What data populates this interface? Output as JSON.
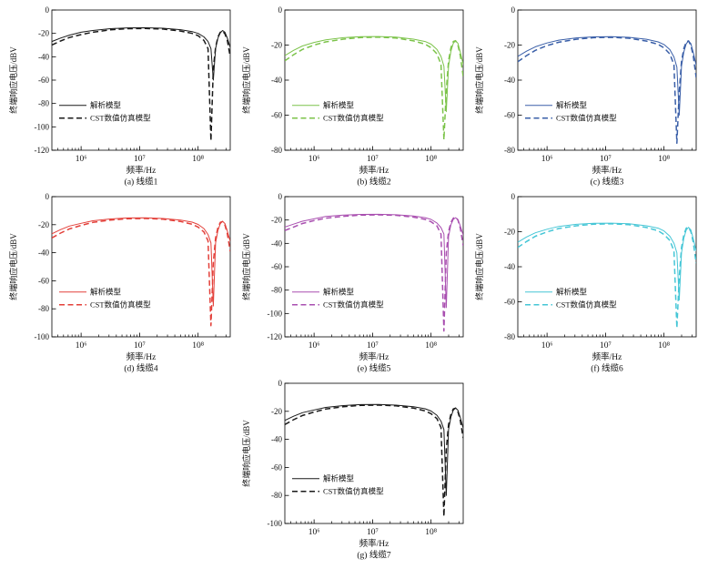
{
  "figure": {
    "background": "#ffffff",
    "layout": "3+3+1 grid of frequency-response subplots"
  },
  "chart_data": {
    "type": "line",
    "common": {
      "xlabel": "频率/Hz",
      "ylabel": "终端响应电压/dBV",
      "x_scale": "log10",
      "xlog_range": [
        5.5,
        8.55
      ],
      "xtick_logs": [
        6,
        7,
        8
      ],
      "xtick_labels": [
        "10⁶",
        "10⁷",
        "10⁸"
      ],
      "grid": false,
      "legend_position": "lower-left-inside",
      "legend": [
        {
          "label": "解析模型",
          "style": "solid"
        },
        {
          "label": "CST数值仿真模型",
          "style": "dashed"
        }
      ],
      "x_log": [
        5.5,
        5.65,
        5.8,
        6.0,
        6.2,
        6.5,
        6.8,
        7.1,
        7.4,
        7.7,
        7.9,
        8.0,
        8.1,
        8.17,
        8.22,
        8.26,
        8.3,
        8.34,
        8.38,
        8.42,
        8.46,
        8.5,
        8.55
      ]
    },
    "charts": [
      {
        "id": "cable1",
        "caption": "(a) 线缆1",
        "color": "#1a1a1a",
        "ylim": [
          -120,
          0
        ],
        "yticks": [
          0,
          -20,
          -40,
          -60,
          -80,
          -100,
          -120
        ],
        "series": [
          {
            "name": "解析模型",
            "style": "solid",
            "y": [
              -27,
              -24,
              -21.5,
              -19,
              -17.5,
              -16,
              -15.3,
              -15.2,
              -15.6,
              -16.8,
              -18.5,
              -20,
              -23,
              -27,
              -33,
              -60,
              -33,
              -24,
              -19.5,
              -17.5,
              -19,
              -24,
              -32
            ]
          },
          {
            "name": "CST数值仿真模型",
            "style": "dashed",
            "y": [
              -30,
              -26.5,
              -23.5,
              -21,
              -19,
              -17,
              -16,
              -15.8,
              -16.3,
              -18,
              -20,
              -22,
              -26,
              -33,
              -112,
              -50,
              -32,
              -23,
              -19,
              -18,
              -20.5,
              -26,
              -40
            ]
          }
        ]
      },
      {
        "id": "cable2",
        "caption": "(b) 线缆2",
        "color": "#7cc34a",
        "ylim": [
          -80,
          0
        ],
        "yticks": [
          0,
          -20,
          -40,
          -60,
          -80
        ],
        "series": [
          {
            "name": "解析模型",
            "style": "solid",
            "y": [
              -26,
              -23,
              -20.5,
              -18.5,
              -17,
              -15.8,
              -15.2,
              -15.1,
              -15.5,
              -16.6,
              -18,
              -19.5,
              -22.5,
              -26.5,
              -32,
              -58,
              -32,
              -23.5,
              -19,
              -17.5,
              -19,
              -24,
              -31
            ]
          },
          {
            "name": "CST数值仿真模型",
            "style": "dashed",
            "y": [
              -29,
              -25.5,
              -22.5,
              -20,
              -18.2,
              -16.6,
              -15.7,
              -15.5,
              -16,
              -17.6,
              -19.5,
              -21.5,
              -25,
              -31,
              -74,
              -46,
              -29,
              -21.5,
              -18,
              -17.5,
              -20,
              -26,
              -38
            ]
          }
        ]
      },
      {
        "id": "cable3",
        "caption": "(c) 线缆3",
        "color": "#3a5fa8",
        "ylim": [
          -80,
          0
        ],
        "yticks": [
          0,
          -20,
          -40,
          -60,
          -80
        ],
        "series": [
          {
            "name": "解析模型",
            "style": "solid",
            "y": [
              -26.5,
              -23.5,
              -21,
              -18.8,
              -17.2,
              -15.9,
              -15.3,
              -15.2,
              -15.6,
              -16.7,
              -18.2,
              -19.7,
              -22.6,
              -26.8,
              -32.5,
              -60,
              -32,
              -23.8,
              -19.2,
              -17.6,
              -19.2,
              -24.2,
              -31.5
            ]
          },
          {
            "name": "CST数值仿真模型",
            "style": "dashed",
            "y": [
              -29.5,
              -26,
              -23,
              -20.3,
              -18.4,
              -16.7,
              -15.8,
              -15.6,
              -16.1,
              -17.7,
              -19.6,
              -21.6,
              -25.1,
              -31.2,
              -76,
              -46.5,
              -29.3,
              -21.8,
              -18.2,
              -17.6,
              -20.2,
              -26.2,
              -38.5
            ]
          }
        ]
      },
      {
        "id": "cable4",
        "caption": "(d) 线缆4",
        "color": "#e3403a",
        "ylim": [
          -100,
          0
        ],
        "yticks": [
          0,
          -20,
          -40,
          -60,
          -80,
          -100
        ],
        "series": [
          {
            "name": "解析模型",
            "style": "solid",
            "y": [
              -26.5,
              -23.5,
              -21,
              -19,
              -17.2,
              -15.9,
              -15.2,
              -15.1,
              -15.6,
              -16.7,
              -18.2,
              -19.8,
              -22.8,
              -27,
              -33,
              -78,
              -33,
              -24,
              -19.2,
              -17.6,
              -19.2,
              -24.5,
              -32
            ]
          },
          {
            "name": "CST数值仿真模型",
            "style": "dashed",
            "y": [
              -29.5,
              -26,
              -23,
              -20.5,
              -18.4,
              -16.7,
              -15.8,
              -15.6,
              -16.1,
              -17.7,
              -19.7,
              -21.7,
              -25.2,
              -31.5,
              -92,
              -47,
              -29.5,
              -22,
              -18.3,
              -17.7,
              -20.3,
              -26.5,
              -39
            ]
          }
        ]
      },
      {
        "id": "cable5",
        "caption": "(e) 线缆5",
        "color": "#a94fb0",
        "ylim": [
          -120,
          0
        ],
        "yticks": [
          0,
          -20,
          -40,
          -60,
          -80,
          -100,
          -120
        ],
        "series": [
          {
            "name": "解析模型",
            "style": "solid",
            "y": [
              -26,
              -23.5,
              -21,
              -19,
              -17,
              -15.8,
              -15.2,
              -15.1,
              -15.5,
              -16.5,
              -18,
              -19.5,
              -22.5,
              -26.5,
              -32,
              -95,
              -34,
              -24,
              -19.5,
              -18,
              -19.5,
              -25,
              -33
            ]
          },
          {
            "name": "CST数值仿真模型",
            "style": "dashed",
            "y": [
              -29,
              -26,
              -23,
              -20.5,
              -18.5,
              -16.8,
              -15.8,
              -15.6,
              -16,
              -17.5,
              -19.5,
              -21.5,
              -25,
              -32,
              -115,
              -48,
              -30,
              -22,
              -18.5,
              -17.5,
              -20,
              -27,
              -42
            ]
          }
        ]
      },
      {
        "id": "cable6",
        "caption": "(f) 线缆6",
        "color": "#45c6d6",
        "ylim": [
          -80,
          0
        ],
        "yticks": [
          0,
          -20,
          -40,
          -60,
          -80
        ],
        "series": [
          {
            "name": "解析模型",
            "style": "solid",
            "y": [
              -26,
              -23,
              -20.6,
              -18.6,
              -17,
              -15.8,
              -15.2,
              -15.1,
              -15.5,
              -16.6,
              -18,
              -19.6,
              -22.6,
              -26.6,
              -32,
              -59,
              -32,
              -23.6,
              -19,
              -17.5,
              -19,
              -24,
              -31
            ]
          },
          {
            "name": "CST数值仿真模型",
            "style": "dashed",
            "y": [
              -29,
              -25.6,
              -22.6,
              -20.1,
              -18.2,
              -16.6,
              -15.7,
              -15.5,
              -16,
              -17.6,
              -19.5,
              -21.6,
              -25,
              -31,
              -75,
              -46,
              -29,
              -21.6,
              -18,
              -17.5,
              -20,
              -26,
              -38
            ]
          }
        ]
      },
      {
        "id": "cable7",
        "caption": "(g) 线缆7",
        "color": "#1a1a1a",
        "ylim": [
          -100,
          0
        ],
        "yticks": [
          0,
          -20,
          -40,
          -60,
          -80,
          -100
        ],
        "series": [
          {
            "name": "解析模型",
            "style": "solid",
            "y": [
              -26.5,
              -23.5,
              -21,
              -19,
              -17.2,
              -15.9,
              -15.2,
              -15.1,
              -15.6,
              -16.7,
              -18.2,
              -19.8,
              -22.8,
              -27,
              -33,
              -80,
              -33,
              -24,
              -19.2,
              -17.6,
              -19.2,
              -24.5,
              -32
            ]
          },
          {
            "name": "CST数值仿真模型",
            "style": "dashed",
            "y": [
              -29.5,
              -26,
              -23,
              -20.5,
              -18.4,
              -16.7,
              -15.8,
              -15.6,
              -16.1,
              -17.7,
              -19.7,
              -21.7,
              -25.2,
              -31.5,
              -95,
              -47,
              -29.5,
              -22,
              -18.3,
              -17.7,
              -20.3,
              -26.5,
              -39
            ]
          }
        ]
      }
    ]
  }
}
